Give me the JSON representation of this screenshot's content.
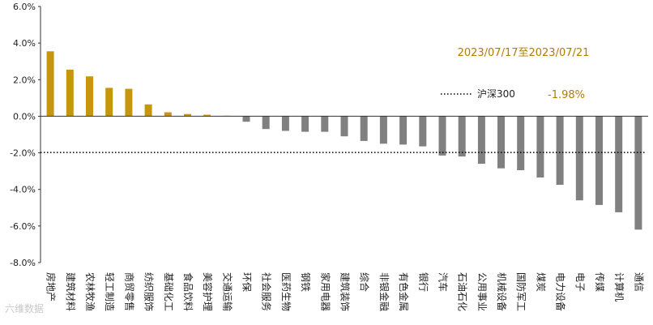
{
  "chart_data": {
    "type": "bar",
    "period_label": "2023/07/17至2023/07/21",
    "benchmark": {
      "name": "沪深300",
      "value": -1.98,
      "value_label": "-1.98%"
    },
    "ylim": [
      -8.0,
      6.0
    ],
    "yticks": [
      "6.0%",
      "4.0%",
      "2.0%",
      "0.0%",
      "-2.0%",
      "-4.0%",
      "-6.0%",
      "-8.0%"
    ],
    "ytick_values": [
      6,
      4,
      2,
      0,
      -2,
      -4,
      -6,
      -8
    ],
    "categories": [
      "房地产",
      "建筑材料",
      "农林牧渔",
      "轻工制造",
      "商贸零售",
      "纺织服饰",
      "基础化工",
      "食品饮料",
      "美容护理",
      "交通运输",
      "环保",
      "社会服务",
      "医药生物",
      "钢铁",
      "家用电器",
      "建筑装饰",
      "综合",
      "非银金融",
      "有色金属",
      "银行",
      "汽车",
      "石油石化",
      "公用事业",
      "机械设备",
      "国防军工",
      "煤炭",
      "电力设备",
      "电子",
      "传媒",
      "计算机",
      "通信"
    ],
    "values": [
      3.55,
      2.55,
      2.18,
      1.55,
      1.5,
      0.65,
      0.22,
      0.12,
      0.08,
      0.03,
      -0.3,
      -0.7,
      -0.8,
      -0.85,
      -0.85,
      -1.1,
      -1.35,
      -1.5,
      -1.55,
      -1.65,
      -2.15,
      -2.2,
      -2.6,
      -2.85,
      -2.95,
      -3.35,
      -3.75,
      -4.6,
      -4.85,
      -5.25,
      -6.2
    ],
    "colors": {
      "positive": "#c8960c",
      "negative": "#808080",
      "axis": "#333333",
      "benchmark_line": "#000000"
    },
    "grid": false,
    "legend_position": "upper-right"
  },
  "watermark": "六维数据"
}
